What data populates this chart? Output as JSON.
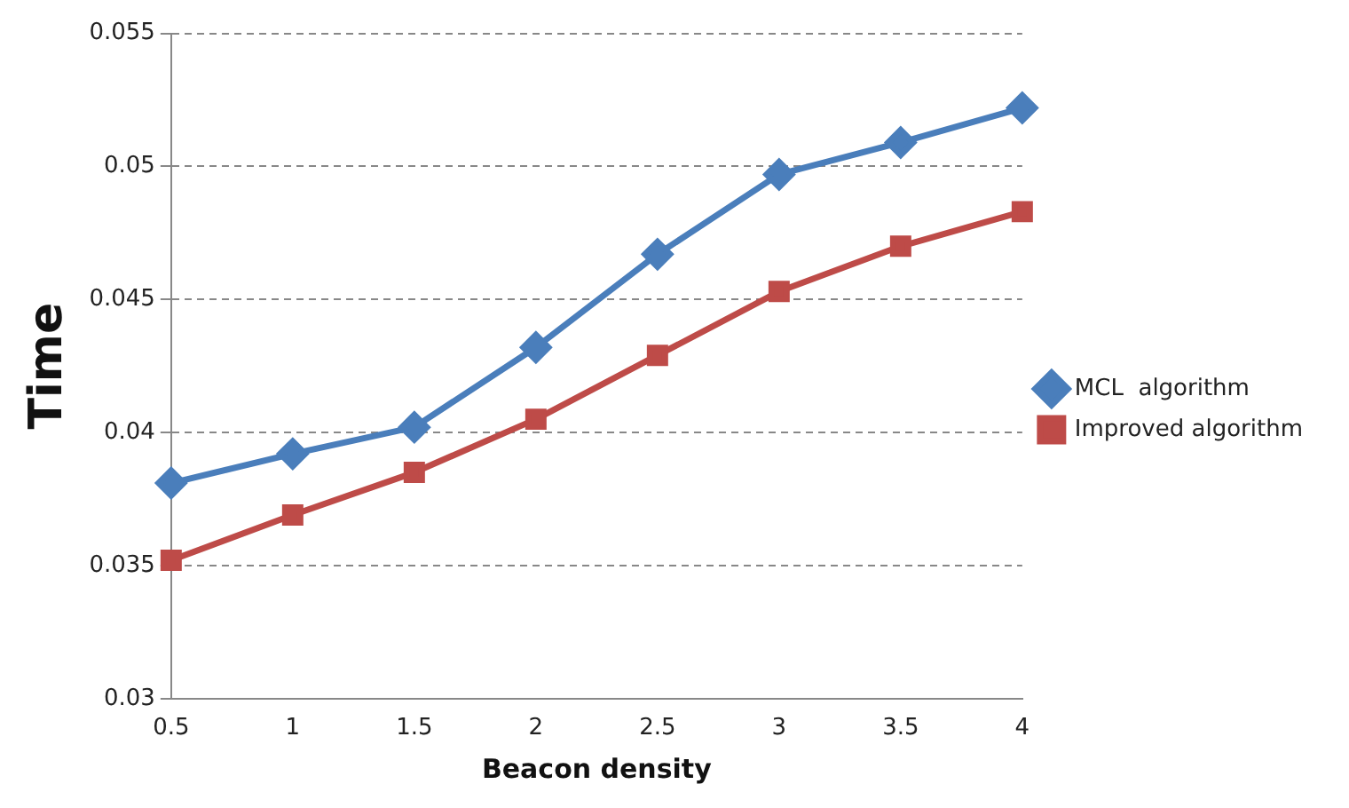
{
  "chart_data": {
    "type": "line",
    "xlabel": "Beacon density",
    "ylabel": "Time",
    "x": [
      0.5,
      1,
      1.5,
      2,
      2.5,
      3,
      3.5,
      4
    ],
    "series": [
      {
        "name": "MCL  algorithm",
        "color": "#4a7ebb",
        "marker": "diamond",
        "values": [
          0.0381,
          0.0392,
          0.0402,
          0.0432,
          0.0467,
          0.0497,
          0.0509,
          0.0522
        ]
      },
      {
        "name": "Improved algorithm",
        "color": "#be4b48",
        "marker": "square",
        "values": [
          0.0352,
          0.0369,
          0.0385,
          0.0405,
          0.0429,
          0.0453,
          0.047,
          0.0483
        ]
      }
    ],
    "xlim": [
      0.5,
      4
    ],
    "xticks": [
      0.5,
      1,
      1.5,
      2,
      2.5,
      3,
      3.5,
      4
    ],
    "ylim": [
      0.03,
      0.055
    ],
    "yticks": [
      0.03,
      0.035,
      0.04,
      0.045,
      0.05,
      0.055
    ],
    "grid": "y",
    "legend": "right",
    "line_style": "solid"
  }
}
